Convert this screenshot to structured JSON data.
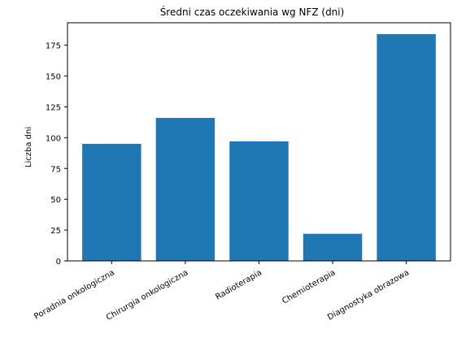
{
  "chart_data": {
    "type": "bar",
    "title": "Średni czas oczekiwania wg NFZ (dni)",
    "xlabel": "",
    "ylabel": "Liczba dni",
    "categories": [
      "Poradnia onkologiczna",
      "Chirurgia onkologiczna",
      "Radioterapia",
      "Chemioterapia",
      "Diagnostyka obrazowa"
    ],
    "values": [
      95,
      116,
      97,
      22,
      184
    ],
    "ylim": [
      0,
      193.2
    ],
    "yticks": [
      0,
      25,
      50,
      75,
      100,
      125,
      150,
      175
    ],
    "bar_color": "#1f77b4",
    "grid": false
  }
}
